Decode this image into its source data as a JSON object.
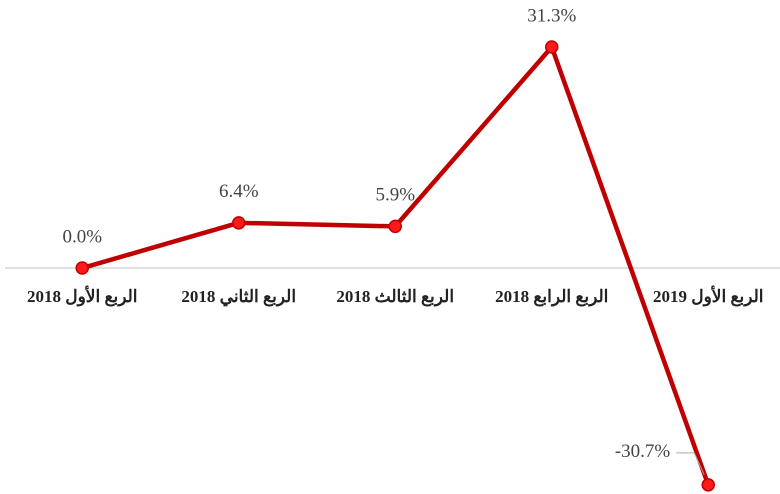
{
  "chart_data": {
    "type": "line",
    "categories": [
      "الربع الأول 2018",
      "الربع الثاني 2018",
      "الربع الثالث 2018",
      "الربع الرابع 2018",
      "الربع الأول 2019"
    ],
    "values": [
      0.0,
      6.4,
      5.9,
      31.3,
      -30.7
    ],
    "value_labels": [
      "0.0%",
      "6.4%",
      "5.9%",
      "31.3%",
      "-30.7%"
    ],
    "color": "#c00000",
    "ylim": [
      -32,
      33
    ]
  }
}
